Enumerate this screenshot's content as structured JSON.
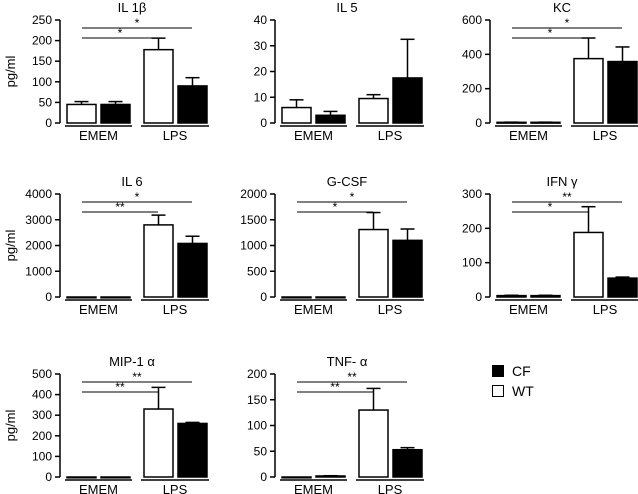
{
  "chart_data": [
    {
      "type": "bar",
      "title": "IL 1β",
      "ylabel": "pg/ml",
      "ylim": [
        0,
        250
      ],
      "yticks": [
        0,
        50,
        100,
        150,
        200,
        250
      ],
      "groups": [
        "EMEM",
        "LPS"
      ],
      "series": [
        {
          "name": "WT",
          "values": [
            45,
            178
          ],
          "errors": [
            7,
            28
          ]
        },
        {
          "name": "CF",
          "values": [
            45,
            90
          ],
          "errors": [
            7,
            20
          ]
        }
      ],
      "significance": [
        {
          "label": "*",
          "from": "EMEM",
          "to": "LPS-WT",
          "level": 1
        },
        {
          "label": "*",
          "from": "EMEM",
          "to": "LPS-CF",
          "level": 2
        }
      ]
    },
    {
      "type": "bar",
      "title": "IL 5",
      "ylabel": "",
      "ylim": [
        0,
        40
      ],
      "yticks": [
        0,
        10,
        20,
        30,
        40
      ],
      "groups": [
        "EMEM",
        "LPS"
      ],
      "series": [
        {
          "name": "WT",
          "values": [
            6,
            9.5
          ],
          "errors": [
            3,
            1.5
          ]
        },
        {
          "name": "CF",
          "values": [
            3,
            17.5
          ],
          "errors": [
            1.5,
            15
          ]
        }
      ],
      "significance": []
    },
    {
      "type": "bar",
      "title": "KC",
      "ylabel": "",
      "ylim": [
        0,
        600
      ],
      "yticks": [
        0,
        200,
        400,
        600
      ],
      "groups": [
        "EMEM",
        "LPS"
      ],
      "series": [
        {
          "name": "WT",
          "values": [
            4,
            375
          ],
          "errors": [
            1,
            120
          ]
        },
        {
          "name": "CF",
          "values": [
            4,
            358
          ],
          "errors": [
            1,
            85
          ]
        }
      ],
      "significance": [
        {
          "label": "*",
          "from": "EMEM",
          "to": "LPS-WT",
          "level": 1
        },
        {
          "label": "*",
          "from": "EMEM",
          "to": "LPS-CF",
          "level": 2
        }
      ]
    },
    {
      "type": "bar",
      "title": "IL 6",
      "ylabel": "pg/ml",
      "ylim": [
        0,
        4000
      ],
      "yticks": [
        0,
        1000,
        2000,
        3000,
        4000
      ],
      "groups": [
        "EMEM",
        "LPS"
      ],
      "series": [
        {
          "name": "WT",
          "values": [
            0,
            2800
          ],
          "errors": [
            0,
            380
          ]
        },
        {
          "name": "CF",
          "values": [
            0,
            2080
          ],
          "errors": [
            0,
            280
          ]
        }
      ],
      "significance": [
        {
          "label": "**",
          "from": "EMEM",
          "to": "LPS-WT",
          "level": 1
        },
        {
          "label": "*",
          "from": "EMEM",
          "to": "LPS-CF",
          "level": 2
        }
      ]
    },
    {
      "type": "bar",
      "title": "G-CSF",
      "ylabel": "",
      "ylim": [
        0,
        2000
      ],
      "yticks": [
        0,
        500,
        1000,
        1500,
        2000
      ],
      "groups": [
        "EMEM",
        "LPS"
      ],
      "series": [
        {
          "name": "WT",
          "values": [
            0,
            1310
          ],
          "errors": [
            0,
            330
          ]
        },
        {
          "name": "CF",
          "values": [
            0,
            1100
          ],
          "errors": [
            0,
            220
          ]
        }
      ],
      "significance": [
        {
          "label": "*",
          "from": "EMEM",
          "to": "LPS-WT",
          "level": 1
        },
        {
          "label": "*",
          "from": "EMEM",
          "to": "LPS-CF",
          "level": 2
        }
      ]
    },
    {
      "type": "bar",
      "title": "IFN γ",
      "ylabel": "",
      "ylim": [
        0,
        300
      ],
      "yticks": [
        0,
        100,
        200,
        300
      ],
      "groups": [
        "EMEM",
        "LPS"
      ],
      "series": [
        {
          "name": "WT",
          "values": [
            4,
            188
          ],
          "errors": [
            1,
            75
          ]
        },
        {
          "name": "CF",
          "values": [
            4,
            55
          ],
          "errors": [
            1,
            3
          ]
        }
      ],
      "significance": [
        {
          "label": "*",
          "from": "EMEM",
          "to": "LPS-WT",
          "level": 1
        },
        {
          "label": "**",
          "from": "EMEM",
          "to": "LPS-CF",
          "level": 2
        }
      ]
    },
    {
      "type": "bar",
      "title": "MIP-1 α",
      "ylabel": "pg/ml",
      "ylim": [
        0,
        500
      ],
      "yticks": [
        0,
        100,
        200,
        300,
        400,
        500
      ],
      "groups": [
        "EMEM",
        "LPS"
      ],
      "series": [
        {
          "name": "WT",
          "values": [
            0,
            330
          ],
          "errors": [
            0,
            105
          ]
        },
        {
          "name": "CF",
          "values": [
            0,
            260
          ],
          "errors": [
            0,
            5
          ]
        }
      ],
      "significance": [
        {
          "label": "**",
          "from": "EMEM",
          "to": "LPS-WT",
          "level": 1
        },
        {
          "label": "**",
          "from": "EMEM",
          "to": "LPS-CF",
          "level": 2
        }
      ]
    },
    {
      "type": "bar",
      "title": "TNF- α",
      "ylabel": "",
      "ylim": [
        0,
        200
      ],
      "yticks": [
        0,
        50,
        100,
        150,
        200
      ],
      "groups": [
        "EMEM",
        "LPS"
      ],
      "series": [
        {
          "name": "WT",
          "values": [
            0,
            130
          ],
          "errors": [
            0,
            42
          ]
        },
        {
          "name": "CF",
          "values": [
            2,
            53
          ],
          "errors": [
            0.5,
            4
          ]
        }
      ],
      "significance": [
        {
          "label": "**",
          "from": "EMEM",
          "to": "LPS-WT",
          "level": 1
        },
        {
          "label": "**",
          "from": "EMEM",
          "to": "LPS-CF",
          "level": 2
        }
      ]
    }
  ],
  "legend": {
    "position": "bottom-right",
    "items": [
      {
        "label": "CF",
        "color": "#000000"
      },
      {
        "label": "WT",
        "color": "#ffffff"
      }
    ]
  }
}
